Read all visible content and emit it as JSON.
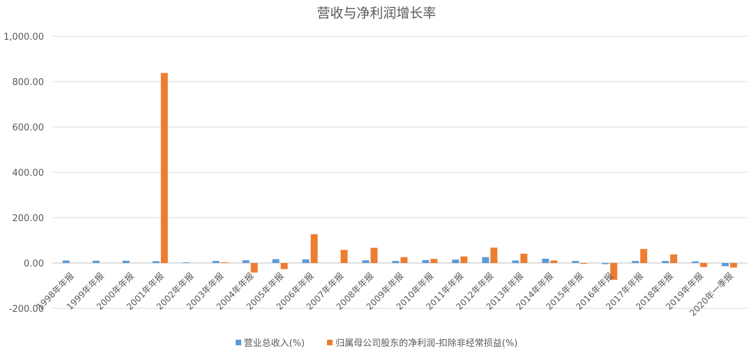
{
  "chart_data": {
    "type": "bar",
    "title": "营收与净利润增长率",
    "categories": [
      "1998年年报",
      "1999年年报",
      "2000年年报",
      "2001年年报",
      "2002年年报",
      "2003年年报",
      "2004年年报",
      "2005年年报",
      "2006年年报",
      "2007年年报",
      "2008年年报",
      "2009年年报",
      "2010年年报",
      "2011年年报",
      "2012年年报",
      "2013年年报",
      "2014年年报",
      "2015年年报",
      "2016年年报",
      "2017年年报",
      "2018年年报",
      "2019年年报",
      "2020年一季报"
    ],
    "series": [
      {
        "name": "营业总收入(%)",
        "color": "#5B9BD5",
        "values": [
          11,
          10,
          10,
          8,
          3,
          9,
          12,
          17,
          16,
          null,
          12,
          9,
          13,
          15,
          26,
          11,
          19,
          9,
          -5,
          9,
          9,
          7,
          -14
        ]
      },
      {
        "name": "归属母公司股东的净利润-扣除非经常损益(%)",
        "color": "#ED7D31",
        "values": [
          null,
          null,
          null,
          838,
          null,
          3,
          -42,
          -27,
          127,
          58,
          67,
          26,
          18,
          29,
          68,
          41,
          11,
          -4,
          -74,
          62,
          38,
          -18,
          -20
        ]
      }
    ],
    "ylim": [
      -200,
      1000
    ],
    "yticks": [
      -200,
      0,
      200,
      400,
      600,
      800,
      1000
    ],
    "ytick_labels": [
      "-200.00",
      "0.00",
      "200.00",
      "400.00",
      "600.00",
      "800.00",
      "1,000.00"
    ],
    "grid": true,
    "legend": "bottom"
  }
}
